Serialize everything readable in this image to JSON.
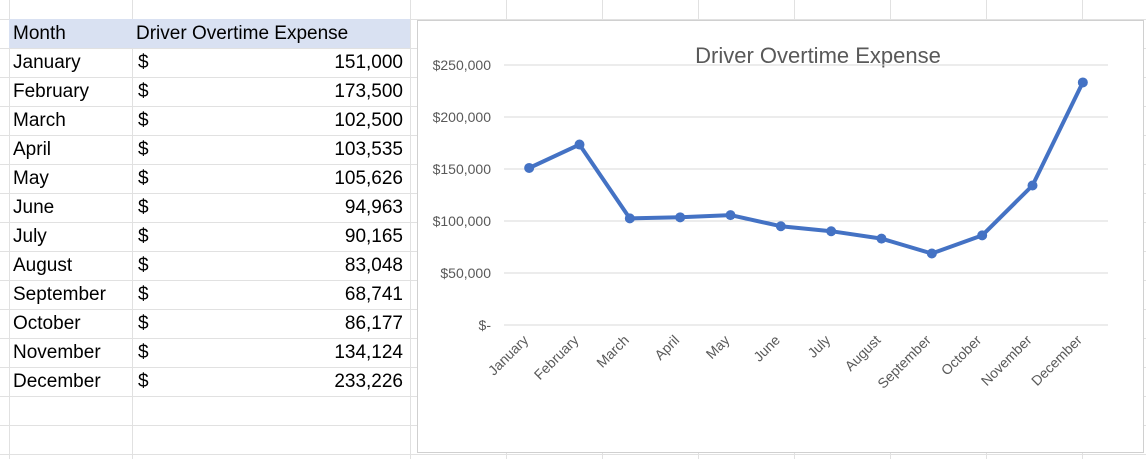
{
  "table": {
    "headers": {
      "month": "Month",
      "expense": "Driver Overtime Expense"
    },
    "currency_symbol": "$",
    "rows": [
      {
        "month": "January",
        "value": "151,000"
      },
      {
        "month": "February",
        "value": "173,500"
      },
      {
        "month": "March",
        "value": "102,500"
      },
      {
        "month": "April",
        "value": "103,535"
      },
      {
        "month": "May",
        "value": "105,626"
      },
      {
        "month": "June",
        "value": "94,963"
      },
      {
        "month": "July",
        "value": "90,165"
      },
      {
        "month": "August",
        "value": "83,048"
      },
      {
        "month": "September",
        "value": "68,741"
      },
      {
        "month": "October",
        "value": "86,177"
      },
      {
        "month": "November",
        "value": "134,124"
      },
      {
        "month": "December",
        "value": "233,226"
      }
    ]
  },
  "chart_data": {
    "type": "line",
    "title": "Driver Overtime Expense",
    "xlabel": "",
    "ylabel": "",
    "categories": [
      "January",
      "February",
      "March",
      "April",
      "May",
      "June",
      "July",
      "August",
      "September",
      "October",
      "November",
      "December"
    ],
    "series": [
      {
        "name": "Driver Overtime Expense",
        "values": [
          151000,
          173500,
          102500,
          103535,
          105626,
          94963,
          90165,
          83048,
          68741,
          86177,
          134124,
          233226
        ]
      }
    ],
    "ylim": [
      0,
      250000
    ],
    "yticks": [
      0,
      50000,
      100000,
      150000,
      200000,
      250000
    ],
    "ytick_labels": [
      "$-",
      "$50,000",
      "$100,000",
      "$150,000",
      "$200,000",
      "$250,000"
    ],
    "grid": true,
    "legend": "none",
    "color": "#4472c4"
  }
}
